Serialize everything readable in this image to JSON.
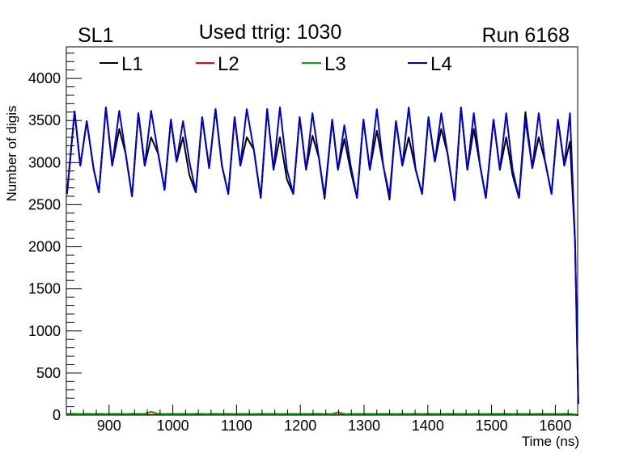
{
  "chart_data": {
    "type": "line",
    "title_left": "SL1",
    "title": "Used ttrig: 1030",
    "title_right": "Run 6168",
    "xlabel": "Time (ns)",
    "ylabel": "Number of digis",
    "xlim": [
      833,
      1635
    ],
    "ylim": [
      0,
      4375
    ],
    "xticks": [
      900,
      1000,
      1100,
      1200,
      1300,
      1400,
      1500,
      1600
    ],
    "yticks": [
      0,
      500,
      1000,
      1500,
      2000,
      2500,
      3000,
      3500,
      4000
    ],
    "grid": false,
    "legend_placement": "top",
    "x": [
      834,
      846,
      855,
      865,
      876,
      884,
      895,
      905,
      916,
      926,
      936,
      946,
      956,
      966,
      977,
      987,
      997,
      1006,
      1016,
      1026,
      1036,
      1046,
      1057,
      1067,
      1077,
      1087,
      1097,
      1106,
      1116,
      1127,
      1138,
      1148,
      1158,
      1168,
      1179,
      1189,
      1199,
      1209,
      1219,
      1229,
      1238,
      1250,
      1259,
      1269,
      1279,
      1289,
      1299,
      1309,
      1320,
      1330,
      1340,
      1350,
      1360,
      1370,
      1381,
      1391,
      1401,
      1411,
      1421,
      1431,
      1442,
      1452,
      1462,
      1472,
      1482,
      1491,
      1503,
      1513,
      1523,
      1533,
      1543,
      1553,
      1564,
      1574,
      1584,
      1594,
      1604,
      1614,
      1623,
      1631,
      1636
    ],
    "series": [
      {
        "name": "L1",
        "color": "#000000",
        "values": [
          2628,
          3607,
          2964,
          3492,
          2916,
          2647,
          3655,
          2964,
          3400,
          3108,
          2599,
          3587,
          2964,
          3300,
          3108,
          2676,
          3511,
          3012,
          3300,
          2850,
          2647,
          3539,
          2935,
          3635,
          2964,
          2628,
          3539,
          2964,
          3300,
          3156,
          2580,
          3635,
          2916,
          3300,
          2800,
          2628,
          3539,
          2916,
          3320,
          3060,
          2570,
          3511,
          2916,
          3280,
          2900,
          2580,
          3511,
          2916,
          3380,
          2964,
          2560,
          3492,
          2964,
          3300,
          2916,
          2628,
          3539,
          3012,
          3400,
          3108,
          2551,
          3655,
          2916,
          3400,
          2964,
          2580,
          3511,
          2916,
          3300,
          2850,
          2580,
          3600,
          2935,
          3300,
          3012,
          2628,
          3511,
          2964,
          3250,
          2053,
          134
        ]
      },
      {
        "name": "L2",
        "color": "#ff0000",
        "values": [
          5,
          5,
          5,
          5,
          5,
          5,
          5,
          5,
          5,
          5,
          5,
          5,
          5,
          5,
          5,
          5,
          5,
          5,
          5,
          5,
          5,
          5,
          5,
          5,
          5,
          5,
          5,
          5,
          5,
          5,
          5,
          5,
          5,
          5,
          5,
          5,
          5,
          5,
          5,
          5,
          5,
          5,
          5,
          5,
          5,
          5,
          5,
          5,
          5,
          5,
          5,
          5,
          5,
          5,
          5,
          5,
          5,
          5,
          5,
          5,
          5,
          5,
          5,
          5,
          5,
          5,
          5,
          5,
          5,
          5,
          5,
          5,
          5,
          5,
          5,
          5,
          5,
          5,
          5,
          5,
          0
        ]
      },
      {
        "name": "L3",
        "color": "#00aa00",
        "values": [
          15,
          18,
          14,
          16,
          15,
          17,
          14,
          16,
          15,
          14,
          18,
          15,
          16,
          40,
          15,
          14,
          16,
          15,
          17,
          14,
          16,
          15,
          14,
          16,
          15,
          17,
          14,
          16,
          15,
          14,
          16,
          15,
          17,
          14,
          16,
          15,
          14,
          16,
          15,
          18,
          14,
          15,
          35,
          15,
          14,
          16,
          15,
          17,
          14,
          16,
          15,
          14,
          16,
          15,
          17,
          14,
          16,
          15,
          14,
          16,
          15,
          17,
          14,
          16,
          15,
          14,
          16,
          15,
          17,
          14,
          16,
          15,
          14,
          16,
          15,
          17,
          14,
          16,
          15,
          10,
          0
        ]
      },
      {
        "name": "L4",
        "color": "#0000cc",
        "values": [
          2628,
          3607,
          2964,
          3492,
          2916,
          2647,
          3655,
          2964,
          3616,
          3108,
          2599,
          3587,
          2964,
          3616,
          3108,
          2676,
          3511,
          3012,
          3492,
          3012,
          2647,
          3539,
          2935,
          3635,
          2964,
          2628,
          3539,
          2964,
          3635,
          3156,
          2580,
          3635,
          2916,
          3655,
          2916,
          2628,
          3539,
          2916,
          3587,
          3060,
          2599,
          3511,
          2916,
          3444,
          2964,
          2580,
          3511,
          2916,
          3635,
          2964,
          2609,
          3492,
          2964,
          3655,
          2916,
          2628,
          3539,
          3012,
          3587,
          3108,
          2551,
          3655,
          2916,
          3587,
          2964,
          2580,
          3511,
          2916,
          3587,
          2916,
          2580,
          3511,
          2935,
          3587,
          3012,
          2628,
          3511,
          2964,
          3587,
          2053,
          134
        ]
      }
    ]
  }
}
